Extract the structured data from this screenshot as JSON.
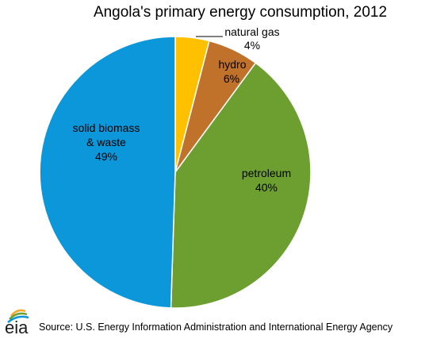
{
  "chart_data": {
    "type": "pie",
    "title": "Angola's primary energy consumption, 2012",
    "slices": [
      {
        "label": "natural gas",
        "value": 4,
        "value_label": "4%",
        "color": "#FFC000"
      },
      {
        "label": "hydro",
        "value": 6,
        "value_label": "6%",
        "color": "#C0712A"
      },
      {
        "label": "petroleum",
        "value": 40,
        "value_label": "40%",
        "color": "#6D9E30"
      },
      {
        "label": "solid biomass & waste",
        "value": 49,
        "value_label": "49%",
        "color": "#0B97D9"
      }
    ],
    "start_angle_deg": 0,
    "direction": "clockwise",
    "legend": "none",
    "source": "Source:  U.S. Energy Information Administration and International Energy Agency"
  },
  "logo": {
    "text": "eia",
    "colors": [
      "#F5A623",
      "#6D9E30",
      "#0B97D9"
    ]
  }
}
